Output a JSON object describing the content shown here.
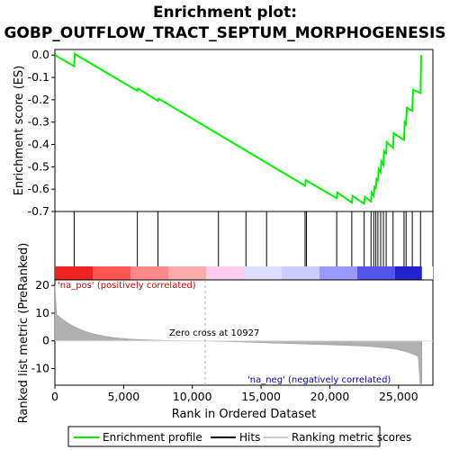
{
  "chart_data": {
    "type": "line",
    "title_line1": "Enrichment plot:",
    "title_line2": "GOBP_OUTFLOW_TRACT_SEPTUM_MORPHOGENESIS",
    "top_panel": {
      "ylabel": "Enrichment score (ES)",
      "ylim": [
        -0.7,
        0.02
      ],
      "yticks": [
        0.0,
        -0.1,
        -0.2,
        -0.3,
        -0.4,
        -0.5,
        -0.6,
        -0.7
      ],
      "ytick_labels": [
        "0.0",
        "-0.1",
        "-0.2",
        "-0.3",
        "-0.4",
        "-0.5",
        "-0.6",
        "-0.7"
      ],
      "series": [
        {
          "name": "Enrichment profile",
          "color": "#00ee00",
          "x": [
            0,
            1400,
            1450,
            6000,
            6050,
            7500,
            7550,
            18200,
            18250,
            20500,
            20550,
            21600,
            21650,
            22500,
            22550,
            23000,
            23050,
            23200,
            23250,
            23350,
            23400,
            23500,
            23550,
            23700,
            23750,
            23900,
            23950,
            24100,
            24150,
            24600,
            24650,
            25400,
            25450,
            25550,
            25600,
            26000,
            26050,
            26600,
            26650
          ],
          "y": [
            0.0,
            -0.05,
            0.005,
            -0.16,
            -0.15,
            -0.205,
            -0.195,
            -0.585,
            -0.56,
            -0.64,
            -0.615,
            -0.66,
            -0.63,
            -0.665,
            -0.635,
            -0.655,
            -0.615,
            -0.63,
            -0.585,
            -0.6,
            -0.55,
            -0.565,
            -0.51,
            -0.525,
            -0.475,
            -0.49,
            -0.43,
            -0.44,
            -0.39,
            -0.415,
            -0.35,
            -0.38,
            -0.3,
            -0.31,
            -0.235,
            -0.25,
            -0.155,
            -0.17,
            0.0
          ]
        }
      ]
    },
    "hits_panel": {
      "hit_positions": [
        1400,
        6000,
        7500,
        11900,
        13900,
        15400,
        18200,
        18300,
        20500,
        21600,
        22500,
        23000,
        23200,
        23350,
        23500,
        23700,
        23900,
        24100,
        24600,
        25400,
        25550,
        26000,
        26600
      ],
      "heat_colors": [
        "#ee2222",
        "#ff5555",
        "#ff8888",
        "#ffaaaa",
        "#ffccee",
        "#ddddff",
        "#ccccff",
        "#9999ff",
        "#5555ee",
        "#2222cc"
      ]
    },
    "bottom_panel": {
      "ylabel": "Ranked list metric (PreRanked)",
      "xlabel": "Rank in Ordered Dataset",
      "xlim": [
        0,
        27500
      ],
      "ylim": [
        -16,
        22
      ],
      "yticks": [
        20,
        10,
        0,
        -10
      ],
      "ytick_labels": [
        "20",
        "10",
        "0",
        "-10"
      ],
      "xticks": [
        0,
        5000,
        10000,
        15000,
        20000,
        25000
      ],
      "xtick_labels": [
        "0",
        "5,000",
        "10,000",
        "15,000",
        "20,000",
        "25,000"
      ],
      "zero_cross_label": "Zero cross at 10927",
      "zero_cross": 10927,
      "pos_label": "'na_pos' (positively correlated)",
      "neg_label": "'na_neg' (negatively correlated)"
    },
    "legend": [
      {
        "label": "Enrichment profile",
        "color": "#00ee00"
      },
      {
        "label": "Hits",
        "color": "#000000"
      },
      {
        "label": "Ranking metric scores",
        "color": "#cccccc"
      }
    ]
  }
}
